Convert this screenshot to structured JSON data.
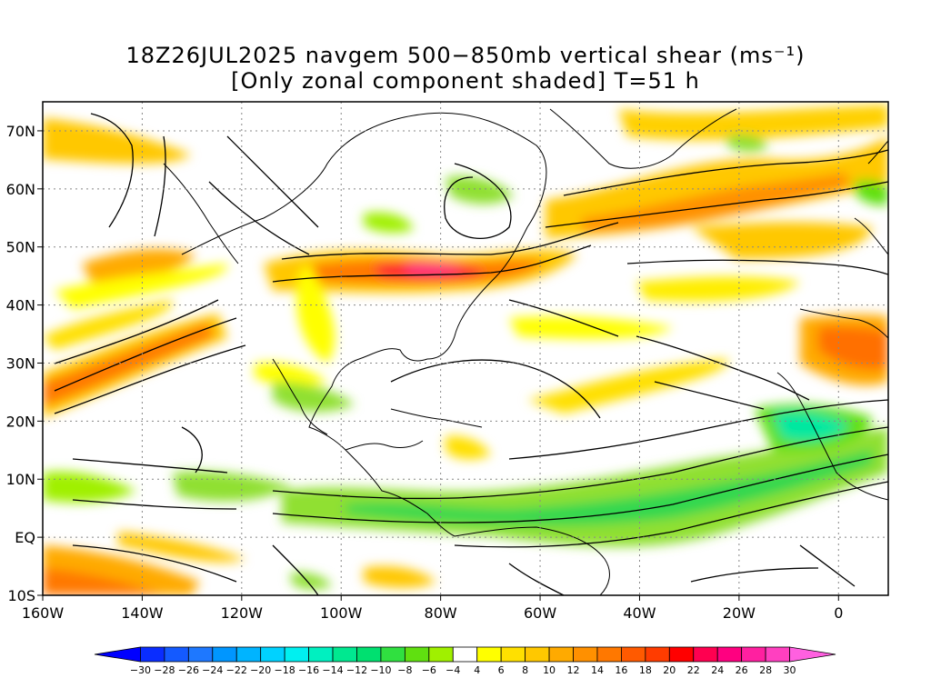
{
  "title": {
    "line1": "18Z26JUL2025 navgem 500−850mb vertical shear (ms⁻¹)",
    "line2": "[Only zonal component shaded] T=51 h"
  },
  "map": {
    "lat_labels": [
      "70N",
      "60N",
      "50N",
      "40N",
      "30N",
      "20N",
      "10N",
      "EQ",
      "10S"
    ],
    "lat_values": [
      70,
      60,
      50,
      40,
      30,
      20,
      10,
      0,
      -10
    ],
    "lon_labels": [
      "160W",
      "140W",
      "120W",
      "100W",
      "80W",
      "60W",
      "40W",
      "20W",
      "0"
    ],
    "lon_values": [
      -160,
      -140,
      -120,
      -100,
      -80,
      -60,
      -40,
      -20,
      0
    ],
    "lat_range": [
      -10,
      75
    ],
    "lon_range": [
      -160,
      10
    ],
    "gridlines": true
  },
  "colorbar": {
    "labels": [
      "−30",
      "−28",
      "−26",
      "−24",
      "−22",
      "−20",
      "−18",
      "−16",
      "−14",
      "−12",
      "−10",
      "−8",
      "−6",
      "−4",
      "4",
      "6",
      "8",
      "10",
      "12",
      "14",
      "16",
      "18",
      "20",
      "22",
      "24",
      "26",
      "28",
      "30"
    ],
    "colors": [
      "#0000ff",
      "#0a2dff",
      "#145aff",
      "#1e78ff",
      "#0096ff",
      "#00b4ff",
      "#00d2ff",
      "#00f0f0",
      "#00f0c0",
      "#00e890",
      "#00e070",
      "#30e040",
      "#60e010",
      "#a0f000",
      "#ffffff",
      "#ffff00",
      "#ffe000",
      "#ffc800",
      "#ffaa00",
      "#ff9000",
      "#ff7800",
      "#ff5a00",
      "#ff3c00",
      "#ff0000",
      "#ff0050",
      "#ff0080",
      "#ff20a0",
      "#ff40c0",
      "#ff60e0"
    ]
  }
}
